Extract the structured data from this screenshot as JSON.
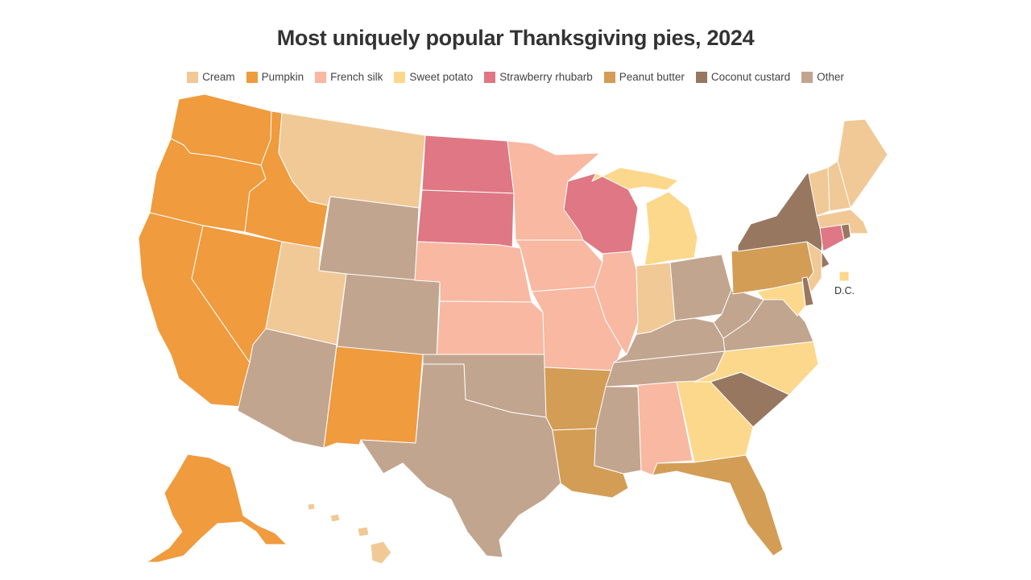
{
  "title": "Most uniquely popular Thanksgiving pies, 2024",
  "legend": [
    {
      "label": "Cream",
      "color": "#F0C996"
    },
    {
      "label": "Pumpkin",
      "color": "#EF9B3E"
    },
    {
      "label": "French silk",
      "color": "#F8B8A2"
    },
    {
      "label": "Sweet potato",
      "color": "#FCD88C"
    },
    {
      "label": "Strawberry rhubarb",
      "color": "#DF7784"
    },
    {
      "label": "Peanut butter",
      "color": "#D39D55"
    },
    {
      "label": "Coconut custard",
      "color": "#977760"
    },
    {
      "label": "Other",
      "color": "#C2A58F"
    }
  ],
  "dc_label": "D.C.",
  "states": {
    "WA": "Pumpkin",
    "OR": "Pumpkin",
    "CA": "Pumpkin",
    "NV": "Pumpkin",
    "ID": "Pumpkin",
    "NM": "Pumpkin",
    "AK": "Pumpkin",
    "MT": "Cream",
    "UT": "Cream",
    "IN": "Cream",
    "ME": "Cream",
    "NH": "Cream",
    "VT": "Cream",
    "MA": "Cream",
    "NJ": "Cream",
    "HI": "Cream",
    "MN": "French silk",
    "NE": "French silk",
    "KS": "French silk",
    "IA": "French silk",
    "MO": "French silk",
    "IL": "French silk",
    "AL": "French silk",
    "MI": "Sweet potato",
    "NC": "Sweet potato",
    "GA": "Sweet potato",
    "MD": "Sweet potato",
    "DC": "Sweet potato",
    "ND": "Strawberry rhubarb",
    "SD": "Strawberry rhubarb",
    "WI": "Strawberry rhubarb",
    "CT": "Strawberry rhubarb",
    "PA": "Peanut butter",
    "AR": "Peanut butter",
    "LA": "Peanut butter",
    "FL": "Peanut butter",
    "NY": "Coconut custard",
    "SC": "Coconut custard",
    "RI": "Coconut custard",
    "DE": "Coconut custard",
    "WY": "Other",
    "CO": "Other",
    "AZ": "Other",
    "TX": "Other",
    "OK": "Other",
    "MS": "Other",
    "TN": "Other",
    "KY": "Other",
    "OH": "Other",
    "WV": "Other",
    "VA": "Other"
  }
}
